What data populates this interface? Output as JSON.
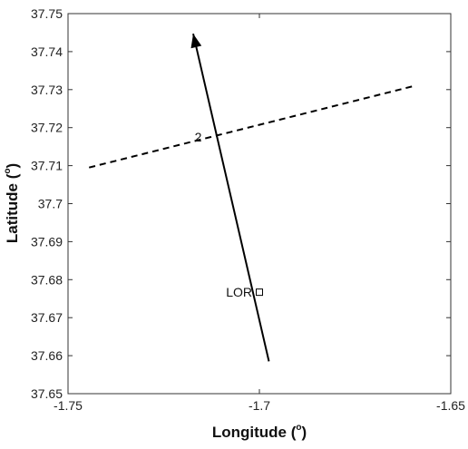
{
  "chart_data": {
    "type": "line",
    "xlabel_main": "Longitude (",
    "xlabel_sup": "o",
    "xlabel_end": ")",
    "ylabel_main": "Latitude (",
    "ylabel_sup": "o",
    "ylabel_end": ")",
    "xlim": [
      -1.75,
      -1.65
    ],
    "ylim": [
      37.65,
      37.75
    ],
    "x_ticks": [
      -1.75,
      -1.7,
      -1.65
    ],
    "x_tick_labels": [
      "-1.75",
      "-1.7",
      "-1.65"
    ],
    "y_ticks": [
      37.65,
      37.66,
      37.67,
      37.68,
      37.69,
      37.7,
      37.71,
      37.72,
      37.73,
      37.74,
      37.75
    ],
    "y_tick_labels": [
      "37.65",
      "37.66",
      "37.67",
      "37.68",
      "37.69",
      "37.7",
      "37.71",
      "37.72",
      "37.73",
      "37.74",
      "37.75"
    ],
    "grid": false,
    "series": [
      {
        "style": "solid",
        "arrow_at_end": true,
        "x": [
          -1.6975,
          -1.7173
        ],
        "y": [
          37.6585,
          37.7447
        ]
      },
      {
        "style": "dashed",
        "x": [
          -1.7445,
          -1.6594
        ],
        "y": [
          37.7095,
          37.731
        ]
      }
    ],
    "markers": [
      {
        "shape": "square",
        "label": "LOR",
        "x": -1.7,
        "y": 37.6767
      }
    ],
    "annotations": [
      {
        "text": "2",
        "x": -1.716,
        "y": 37.7175
      }
    ]
  }
}
